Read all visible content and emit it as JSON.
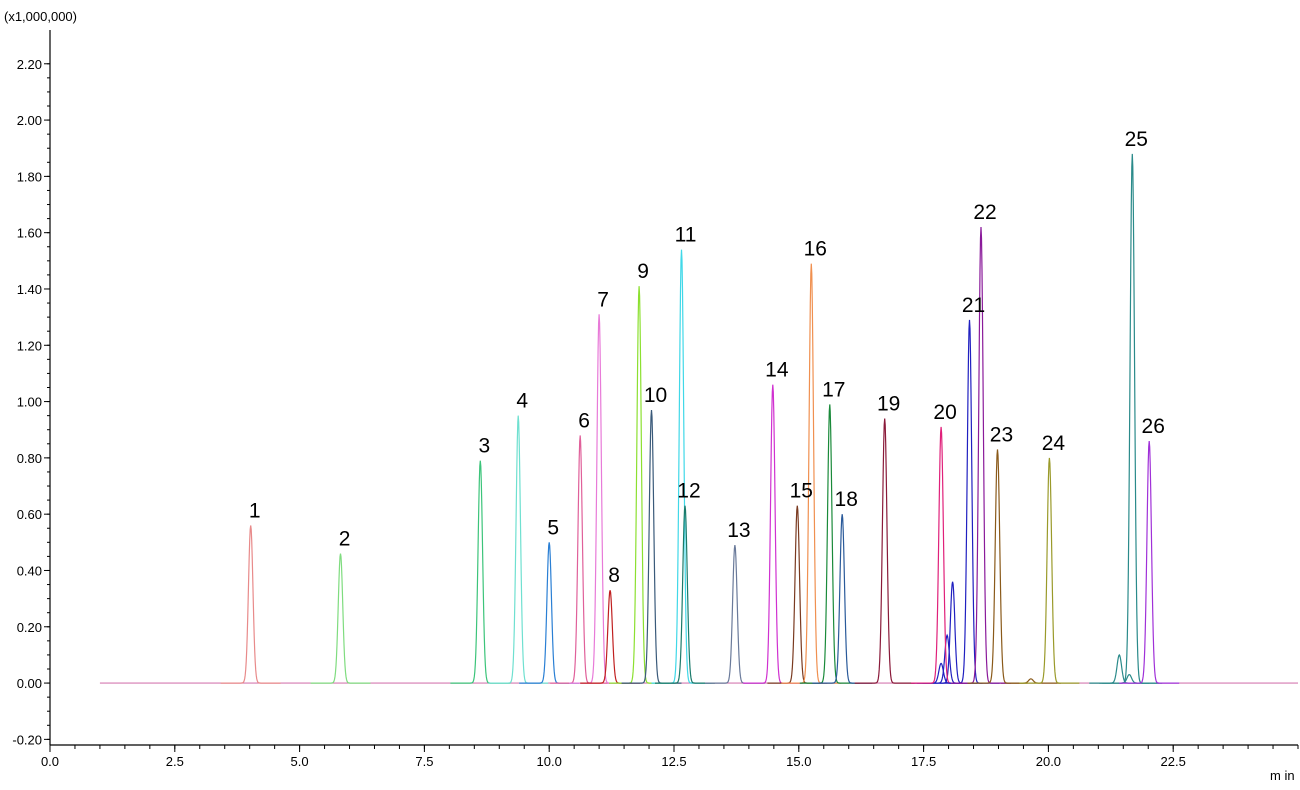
{
  "chart_data": {
    "type": "line",
    "title": "",
    "y_multiplier_label": "(x1,000,000)",
    "xunit_label": "m in",
    "xlim": [
      0.0,
      25.0
    ],
    "ylim": [
      -0.22,
      2.32
    ],
    "xticks": [
      0.0,
      2.5,
      5.0,
      7.5,
      10.0,
      12.5,
      15.0,
      17.5,
      20.0,
      22.5
    ],
    "xtick_labels": [
      "0.0",
      "2.5",
      "5.0",
      "7.5",
      "10.0",
      "12.5",
      "15.0",
      "17.5",
      "20.0",
      "22.5"
    ],
    "yticks": [
      -0.2,
      0.0,
      0.2,
      0.4,
      0.6,
      0.8,
      1.0,
      1.2,
      1.4,
      1.6,
      1.8,
      2.0,
      2.2
    ],
    "ytick_labels": [
      "-0.20",
      "0.00",
      "0.20",
      "0.40",
      "0.60",
      "0.80",
      "1.00",
      "1.20",
      "1.40",
      "1.60",
      "1.80",
      "2.00",
      "2.20"
    ],
    "baseline_range": [
      1.0,
      25.0
    ],
    "grid": false,
    "peaks": [
      {
        "label": "1",
        "rt": 4.02,
        "height": 0.56,
        "color": "#e88a8a"
      },
      {
        "label": "2",
        "rt": 5.82,
        "height": 0.46,
        "color": "#7fdc7f"
      },
      {
        "label": "3",
        "rt": 8.62,
        "height": 0.79,
        "color": "#3cc47a"
      },
      {
        "label": "4",
        "rt": 9.38,
        "height": 0.95,
        "color": "#6fe0d0"
      },
      {
        "label": "5",
        "rt": 10.0,
        "height": 0.5,
        "color": "#2a7fd4"
      },
      {
        "label": "6",
        "rt": 10.62,
        "height": 0.88,
        "color": "#e0609a"
      },
      {
        "label": "7",
        "rt": 11.0,
        "height": 1.31,
        "color": "#e87ad8"
      },
      {
        "label": "8",
        "rt": 11.22,
        "height": 0.33,
        "color": "#c02020"
      },
      {
        "label": "9",
        "rt": 11.8,
        "height": 1.41,
        "color": "#8ce030"
      },
      {
        "label": "10",
        "rt": 12.05,
        "height": 0.97,
        "color": "#3a5a7a"
      },
      {
        "label": "11",
        "rt": 12.65,
        "height": 1.54,
        "color": "#40d8e8"
      },
      {
        "label": "12",
        "rt": 12.72,
        "height": 0.63,
        "color": "#1a7a6a"
      },
      {
        "label": "13",
        "rt": 13.72,
        "height": 0.49,
        "color": "#6a7a9a"
      },
      {
        "label": "14",
        "rt": 14.48,
        "height": 1.06,
        "color": "#d030d0"
      },
      {
        "label": "15",
        "rt": 14.97,
        "height": 0.63,
        "color": "#7a3a20"
      },
      {
        "label": "16",
        "rt": 15.25,
        "height": 1.49,
        "color": "#f09050"
      },
      {
        "label": "17",
        "rt": 15.62,
        "height": 0.99,
        "color": "#1a8a3a"
      },
      {
        "label": "18",
        "rt": 15.87,
        "height": 0.6,
        "color": "#2a5a9a"
      },
      {
        "label": "19",
        "rt": 16.72,
        "height": 0.94,
        "color": "#8a1a3a"
      },
      {
        "label": "20",
        "rt": 17.85,
        "height": 0.91,
        "color": "#e0207a"
      },
      {
        "label": "21",
        "rt": 18.42,
        "height": 1.29,
        "color": "#2020c0"
      },
      {
        "label": "22",
        "rt": 18.65,
        "height": 1.62,
        "color": "#8a1a9a"
      },
      {
        "label": "23",
        "rt": 18.98,
        "height": 0.83,
        "color": "#8a5a1a"
      },
      {
        "label": "24",
        "rt": 20.02,
        "height": 0.8,
        "color": "#9a9a2a"
      },
      {
        "label": "25",
        "rt": 21.68,
        "height": 1.88,
        "color": "#2a8a8a"
      },
      {
        "label": "26",
        "rt": 22.02,
        "height": 0.86,
        "color": "#a030d8"
      }
    ],
    "minor_features": [
      {
        "rt": 18.08,
        "height": 0.36,
        "color": "#2020c0"
      },
      {
        "rt": 17.97,
        "height": 0.17,
        "color": "#2020c0"
      },
      {
        "rt": 17.85,
        "height": 0.07,
        "color": "#2020c0"
      },
      {
        "rt": 21.42,
        "height": 0.1,
        "color": "#2a8a8a"
      },
      {
        "rt": 21.62,
        "height": 0.03,
        "color": "#2a8a8a"
      },
      {
        "rt": 19.65,
        "height": 0.015,
        "color": "#8a5a1a"
      }
    ]
  }
}
